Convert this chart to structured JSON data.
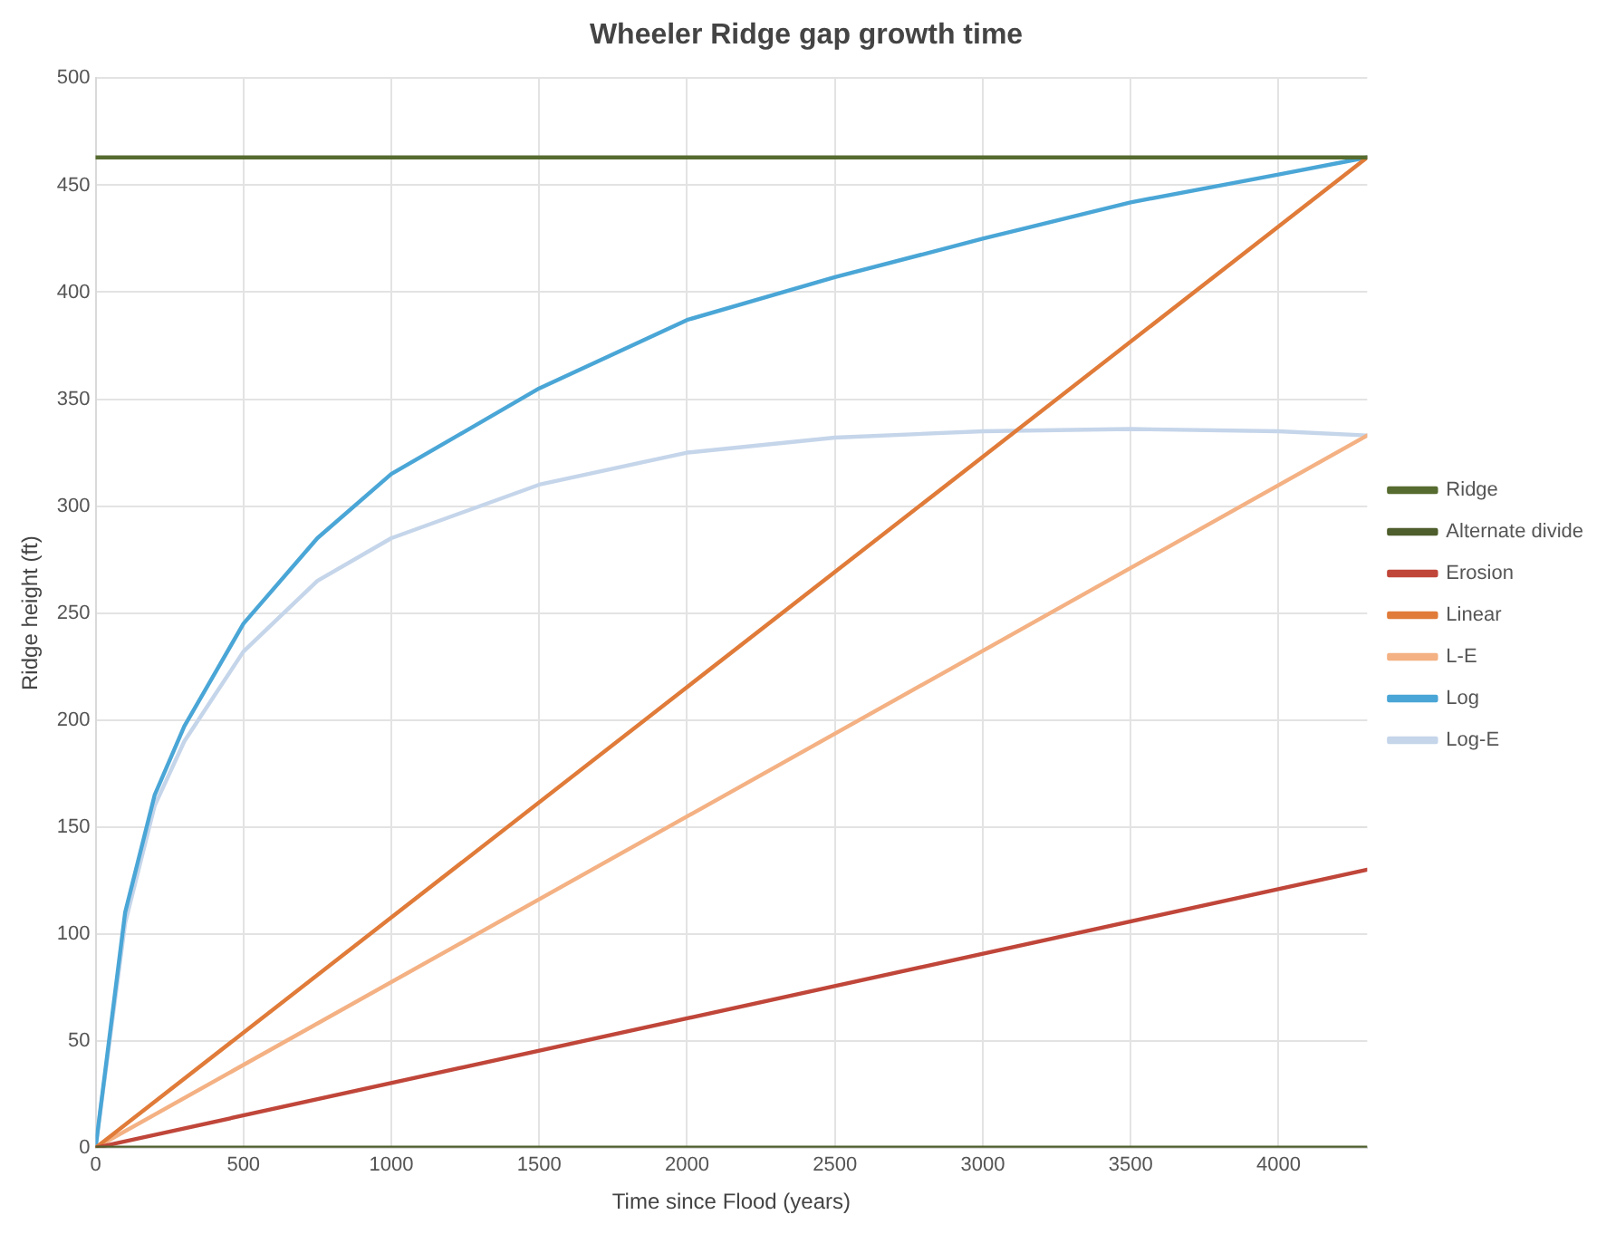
{
  "chart_data": {
    "type": "line",
    "title": "Wheeler Ridge gap growth time",
    "xlabel": "Time since Flood (years)",
    "ylabel": "Ridge height (ft)",
    "xlim": [
      0,
      4300
    ],
    "xticks": [
      0,
      500,
      1000,
      1500,
      2000,
      2500,
      3000,
      3500,
      4000
    ],
    "ylim": [
      0,
      500
    ],
    "yticks": [
      0,
      50,
      100,
      150,
      200,
      250,
      300,
      350,
      400,
      450,
      500
    ],
    "grid": true,
    "legend": "right",
    "marker": "none",
    "line_style": "solid",
    "series": [
      {
        "name": "Ridge",
        "color": "#566b2f",
        "x": [
          0,
          4300
        ],
        "values": [
          463,
          463
        ]
      },
      {
        "name": "Alternate divide",
        "color": "#4e5e2c",
        "x": [
          0,
          4300
        ],
        "values": [
          0,
          0
        ]
      },
      {
        "name": "Erosion",
        "color": "#c0463a",
        "x": [
          0,
          4300
        ],
        "values": [
          0,
          130
        ]
      },
      {
        "name": "Linear",
        "color": "#e07b39",
        "x": [
          0,
          4300
        ],
        "values": [
          0,
          463
        ]
      },
      {
        "name": "L-E",
        "color": "#f4b183",
        "x": [
          0,
          4300
        ],
        "values": [
          0,
          333
        ]
      },
      {
        "name": "Log",
        "color": "#4aa6d6",
        "x": [
          0,
          100,
          200,
          300,
          500,
          750,
          1000,
          1500,
          2000,
          2500,
          3000,
          3500,
          4000,
          4300
        ],
        "values": [
          0,
          110,
          165,
          197,
          245,
          285,
          315,
          355,
          387,
          407,
          425,
          442,
          455,
          463
        ]
      },
      {
        "name": "Log-E",
        "color": "#c5d5ea",
        "x": [
          0,
          100,
          200,
          300,
          500,
          750,
          1000,
          1500,
          2000,
          2500,
          3000,
          3500,
          4000,
          4300
        ],
        "values": [
          0,
          105,
          160,
          190,
          232,
          265,
          285,
          310,
          325,
          332,
          335,
          336,
          335,
          333
        ]
      }
    ]
  }
}
